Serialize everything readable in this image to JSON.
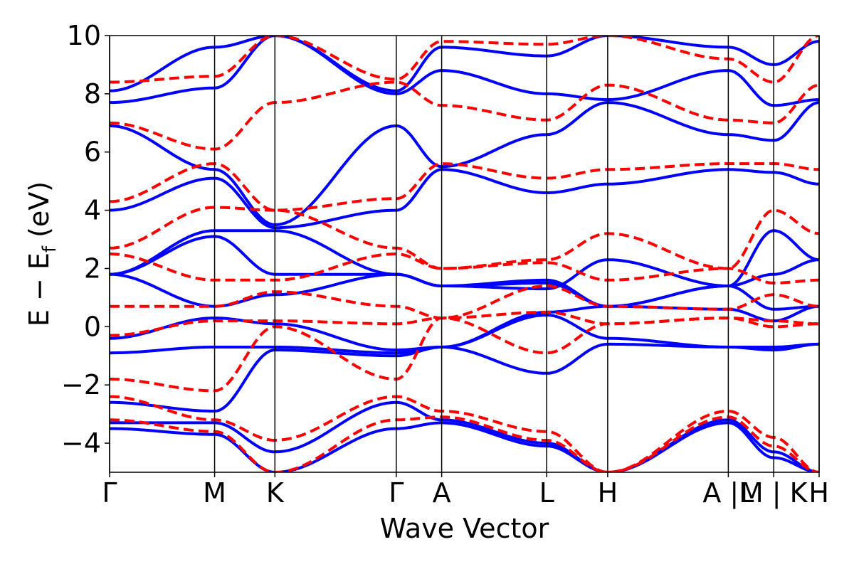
{
  "chart_data": {
    "type": "line",
    "title": "",
    "xlabel": "Wave Vector",
    "ylabel_parts": [
      "E − E",
      "f",
      " (eV)"
    ],
    "xlim": [
      0,
      1
    ],
    "ylim": [
      -5,
      10
    ],
    "grid": false,
    "legend": "none",
    "y_ticks": [
      -4,
      -2,
      0,
      2,
      4,
      6,
      8,
      10
    ],
    "y_tick_labels": [
      "−4",
      "−2",
      "0",
      "2",
      "4",
      "6",
      "8",
      "10"
    ],
    "kpoints": [
      {
        "label": "Γ",
        "x": 0.0
      },
      {
        "label": "M",
        "x": 0.148
      },
      {
        "label": "K",
        "x": 0.233
      },
      {
        "label": "Γ",
        "x": 0.404
      },
      {
        "label": "A",
        "x": 0.468
      },
      {
        "label": "L",
        "x": 0.616
      },
      {
        "label": "H",
        "x": 0.702
      },
      {
        "label": "A |L",
        "x": 0.872
      },
      {
        "label": "M | K",
        "x": 0.936
      },
      {
        "label": "H",
        "x": 1.0
      }
    ],
    "colors": {
      "series_a": "#0000ff",
      "series_b": "#ff0000",
      "axes": "#000000"
    },
    "series": [
      {
        "style": "solid",
        "color": "#0000ff",
        "bands": [
          {
            "x": [
              0,
              0.148,
              0.233,
              0.404,
              0.468,
              0.616,
              0.702,
              0.872,
              0.936,
              1.0
            ],
            "y": [
              -2.6,
              -2.9,
              -0.8,
              -1.0,
              -0.7,
              -1.6,
              -0.6,
              -0.7,
              -0.8,
              -0.6
            ]
          },
          {
            "x": [
              0,
              0.148,
              0.233,
              0.404,
              0.468,
              0.616,
              0.702,
              0.872,
              0.936,
              1.0
            ],
            "y": [
              -0.9,
              -0.7,
              -0.7,
              -0.9,
              -0.7,
              0.4,
              -0.4,
              -0.7,
              -0.7,
              -0.6
            ]
          },
          {
            "x": [
              0,
              0.148,
              0.233,
              0.404,
              0.468,
              0.616,
              0.702,
              0.872,
              0.936,
              1.0
            ],
            "y": [
              -0.4,
              0.3,
              0.1,
              -0.8,
              -0.7,
              0.5,
              0.7,
              0.6,
              0.2,
              0.7
            ]
          },
          {
            "x": [
              0,
              0.148,
              0.233,
              0.404,
              0.468,
              0.616,
              0.702,
              0.872,
              0.936,
              1.0
            ],
            "y": [
              1.8,
              0.7,
              1.1,
              1.8,
              1.4,
              1.5,
              0.7,
              1.4,
              0.6,
              0.7
            ]
          },
          {
            "x": [
              0,
              0.148,
              0.233,
              0.404,
              0.468,
              0.616,
              0.702,
              0.872,
              0.936,
              1.0
            ],
            "y": [
              1.8,
              3.1,
              1.8,
              1.8,
              1.4,
              1.3,
              2.3,
              1.4,
              1.8,
              2.3
            ]
          },
          {
            "x": [
              0,
              0.148,
              0.233,
              0.404,
              0.468,
              0.616,
              0.702,
              0.872,
              0.936,
              1.0
            ],
            "y": [
              1.8,
              3.3,
              3.3,
              1.8,
              1.4,
              1.6,
              0.7,
              1.4,
              3.3,
              2.3
            ]
          },
          {
            "x": [
              0,
              0.148,
              0.233,
              0.404,
              0.468,
              0.616,
              0.702,
              0.872,
              0.936,
              1.0
            ],
            "y": [
              4.0,
              5.1,
              3.4,
              4.0,
              5.4,
              4.6,
              4.9,
              5.4,
              5.3,
              4.9
            ]
          },
          {
            "x": [
              0,
              0.148,
              0.233,
              0.404,
              0.468,
              0.616,
              0.702,
              0.872,
              0.936,
              1.0
            ],
            "y": [
              6.9,
              5.4,
              3.5,
              6.9,
              5.5,
              6.6,
              7.7,
              6.6,
              6.4,
              7.7
            ]
          },
          {
            "x": [
              0,
              0.148,
              0.233,
              0.404,
              0.468,
              0.616,
              0.702,
              0.872,
              0.936,
              1.0
            ],
            "y": [
              7.7,
              8.2,
              10.0,
              8.0,
              8.8,
              8.0,
              7.8,
              8.8,
              7.6,
              7.8
            ]
          },
          {
            "x": [
              0,
              0.148,
              0.233,
              0.404,
              0.468,
              0.616,
              0.702,
              0.872,
              0.936,
              1.0
            ],
            "y": [
              8.1,
              9.6,
              10.0,
              8.1,
              9.6,
              9.3,
              10.0,
              9.6,
              9.0,
              9.8
            ]
          },
          {
            "x": [
              0,
              0.148,
              0.233,
              0.404,
              0.468,
              0.616,
              0.702,
              0.872,
              0.936,
              1.0
            ],
            "y": [
              -3.3,
              -3.3,
              -4.3,
              -2.6,
              -3.2,
              -4.0,
              -5.0,
              -3.2,
              -4.3,
              -5.0
            ]
          },
          {
            "x": [
              0,
              0.148,
              0.233,
              0.404,
              0.468,
              0.616,
              0.702,
              0.872,
              0.936,
              1.0
            ],
            "y": [
              -3.5,
              -3.7,
              -5.0,
              -3.5,
              -3.3,
              -4.1,
              -5.0,
              -3.3,
              -4.5,
              -5.0
            ]
          }
        ]
      },
      {
        "style": "dashed",
        "color": "#ff0000",
        "bands": [
          {
            "x": [
              0,
              0.148,
              0.233,
              0.404,
              0.468,
              0.616,
              0.702,
              0.872,
              0.936,
              1.0
            ],
            "y": [
              -1.8,
              -2.2,
              0.0,
              -1.8,
              0.3,
              -0.9,
              0.1,
              0.3,
              0.0,
              0.1
            ]
          },
          {
            "x": [
              0,
              0.148,
              0.233,
              0.404,
              0.468,
              0.616,
              0.702,
              0.872,
              0.936,
              1.0
            ],
            "y": [
              -0.3,
              0.2,
              0.2,
              0.1,
              0.3,
              0.5,
              0.1,
              0.3,
              0.2,
              0.1
            ]
          },
          {
            "x": [
              0,
              0.148,
              0.233,
              0.404,
              0.468,
              0.616,
              0.702,
              0.872,
              0.936,
              1.0
            ],
            "y": [
              0.7,
              0.7,
              1.2,
              0.7,
              0.3,
              1.4,
              0.7,
              0.6,
              1.1,
              0.7
            ]
          },
          {
            "x": [
              0,
              0.148,
              0.233,
              0.404,
              0.468,
              0.616,
              0.702,
              0.872,
              0.936,
              1.0
            ],
            "y": [
              2.5,
              1.6,
              1.6,
              2.5,
              2.0,
              2.2,
              1.6,
              2.0,
              1.5,
              1.6
            ]
          },
          {
            "x": [
              0,
              0.148,
              0.233,
              0.404,
              0.468,
              0.616,
              0.702,
              0.872,
              0.936,
              1.0
            ],
            "y": [
              2.7,
              4.1,
              4.0,
              2.7,
              2.0,
              2.3,
              3.2,
              2.0,
              4.0,
              3.2
            ]
          },
          {
            "x": [
              0,
              0.148,
              0.233,
              0.404,
              0.468,
              0.616,
              0.702,
              0.872,
              0.936,
              1.0
            ],
            "y": [
              4.3,
              5.6,
              4.0,
              4.4,
              5.6,
              5.1,
              5.4,
              5.6,
              5.6,
              5.4
            ]
          },
          {
            "x": [
              0,
              0.148,
              0.233,
              0.404,
              0.468,
              0.616,
              0.702,
              0.872,
              0.936,
              1.0
            ],
            "y": [
              7.0,
              6.1,
              7.7,
              8.4,
              7.6,
              7.1,
              8.3,
              7.1,
              7.0,
              8.3
            ]
          },
          {
            "x": [
              0,
              0.148,
              0.233,
              0.404,
              0.468,
              0.616,
              0.702,
              0.872,
              0.936,
              1.0
            ],
            "y": [
              8.4,
              8.6,
              10.0,
              8.5,
              9.8,
              9.7,
              10.0,
              9.2,
              8.4,
              10.0
            ]
          },
          {
            "x": [
              0,
              0.148,
              0.233,
              0.404,
              0.468,
              0.616,
              0.702,
              0.872,
              0.936,
              1.0
            ],
            "y": [
              -2.4,
              -3.2,
              -3.9,
              -2.4,
              -2.9,
              -3.6,
              -5.0,
              -2.9,
              -3.8,
              -5.0
            ]
          },
          {
            "x": [
              0,
              0.148,
              0.233,
              0.404,
              0.468,
              0.616,
              0.702,
              0.872,
              0.936,
              1.0
            ],
            "y": [
              -3.2,
              -3.6,
              -5.0,
              -3.2,
              -3.1,
              -3.9,
              -5.0,
              -3.1,
              -4.1,
              -5.0
            ]
          }
        ]
      }
    ]
  }
}
